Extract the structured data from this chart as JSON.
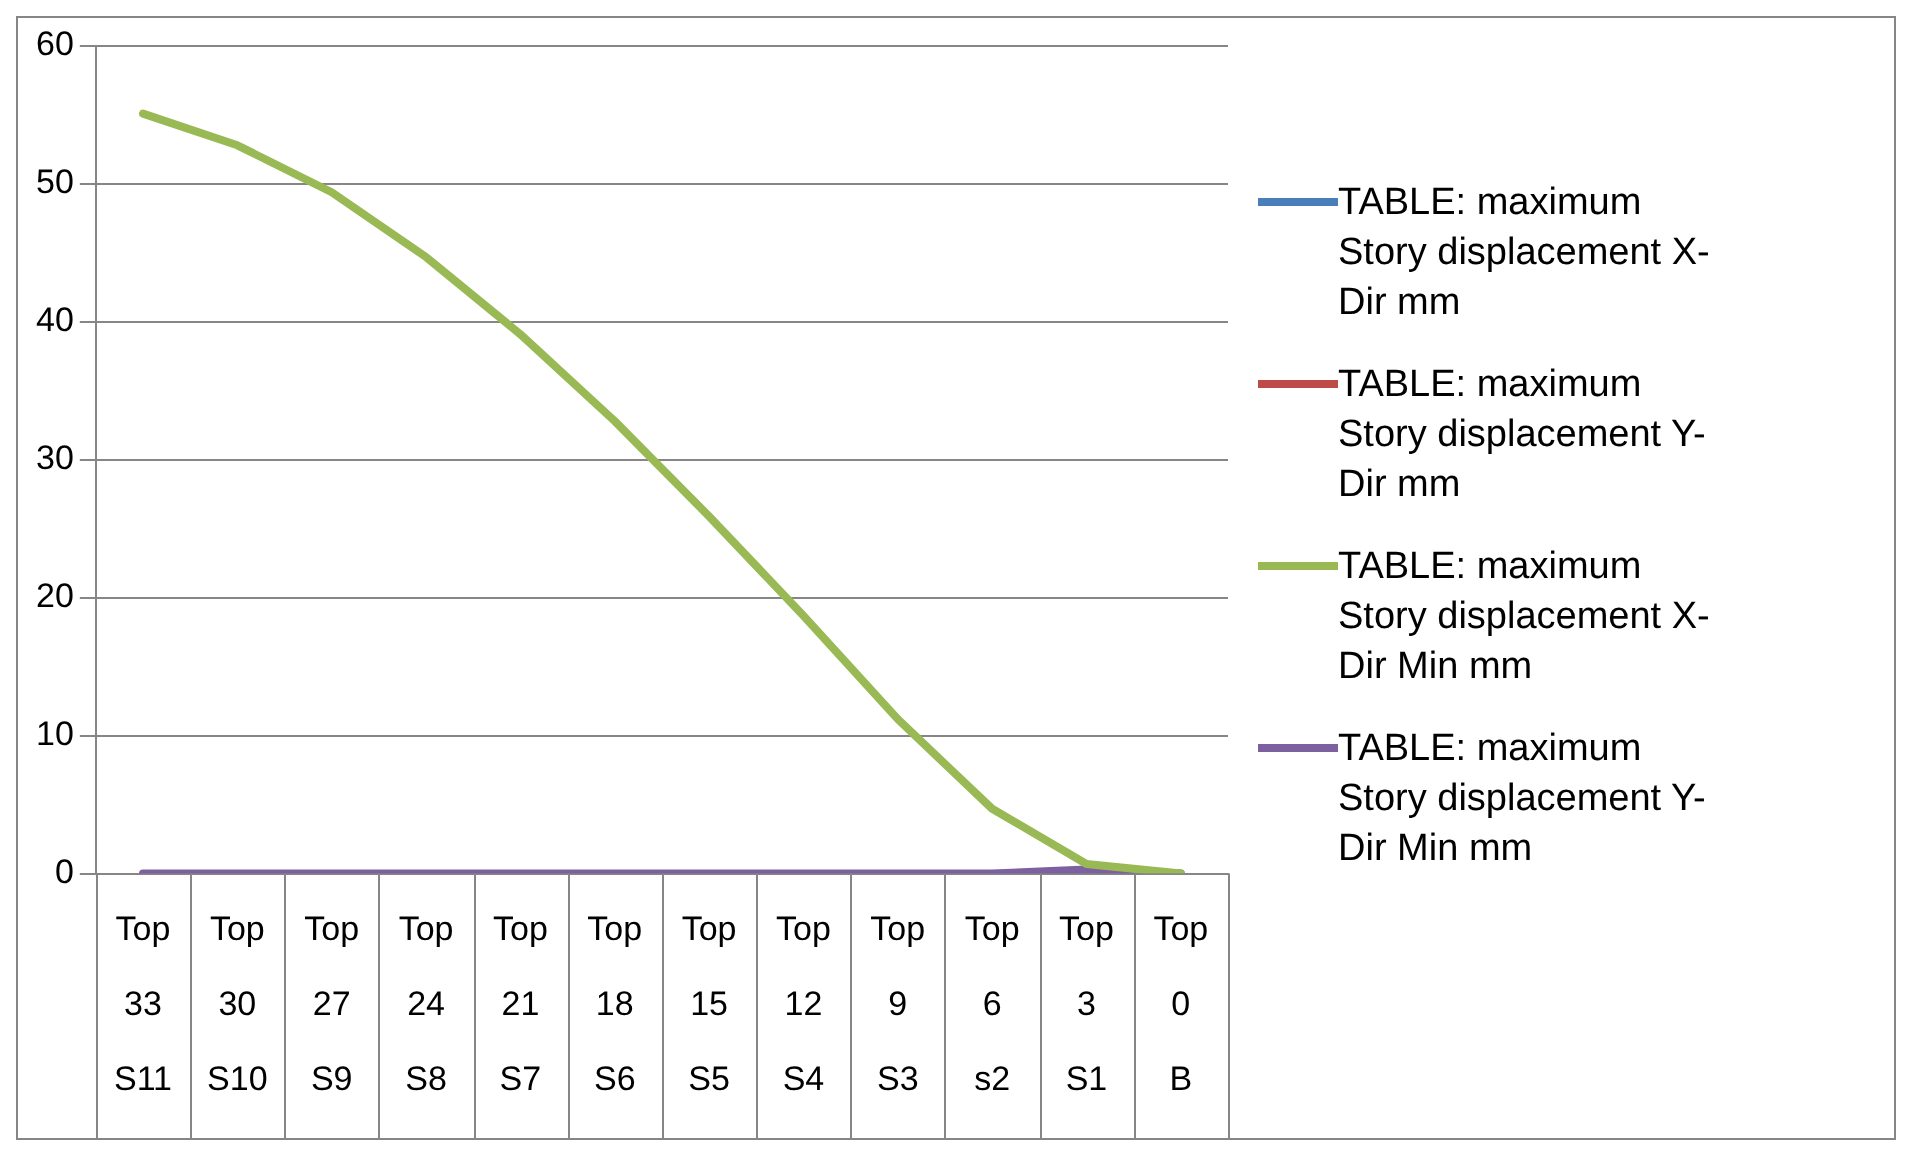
{
  "chart_data": {
    "type": "line",
    "categories": [
      "Top\n33\nS11",
      "Top\n30\nS10",
      "Top\n27\nS9",
      "Top\n24\nS8",
      "Top\n21\nS7",
      "Top\n18\nS6",
      "Top\n15\nS5",
      "Top\n12\nS4",
      "Top\n9\nS3",
      "Top\n6\ns2",
      "Top\n3\nS1",
      "Top\n0\nB"
    ],
    "series": [
      {
        "name": "TABLE:  maximum Story displacement X-Dir mm",
        "color": "#4a7ebb",
        "values": [
          null,
          null,
          null,
          null,
          null,
          null,
          null,
          null,
          null,
          null,
          null,
          null
        ]
      },
      {
        "name": "TABLE:  maximum Story displacement Y-Dir mm",
        "color": "#be4b48",
        "values": [
          null,
          null,
          null,
          null,
          null,
          null,
          null,
          null,
          null,
          null,
          null,
          null
        ]
      },
      {
        "name": "TABLE:  maximum Story displacement X-Dir Min mm",
        "color": "#98b954",
        "values": [
          55.1,
          52.8,
          49.4,
          44.7,
          39.1,
          32.8,
          25.9,
          18.7,
          11.2,
          4.7,
          0.7,
          0
        ]
      },
      {
        "name": "TABLE:  maximum Story displacement Y-Dir Min mm",
        "color": "#7d60a0",
        "values": [
          0,
          0,
          0,
          0,
          0,
          0,
          0,
          0,
          0,
          0,
          0.3,
          0
        ]
      }
    ],
    "ylim": [
      0,
      60
    ],
    "yticks": [
      0,
      10,
      20,
      30,
      40,
      50,
      60
    ],
    "grid": "y",
    "legend": "right",
    "marker": "none"
  }
}
